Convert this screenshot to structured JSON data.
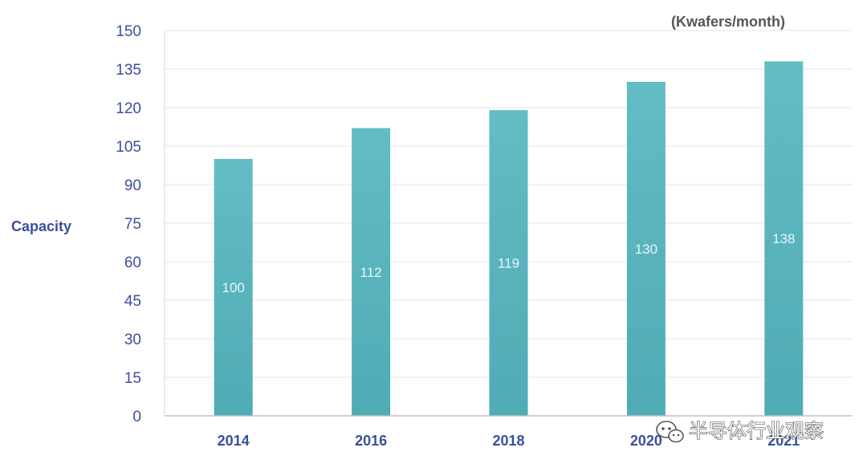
{
  "chart_data": {
    "type": "bar",
    "categories": [
      "2014",
      "2016",
      "2018",
      "2020",
      "2021"
    ],
    "values": [
      100,
      112,
      119,
      130,
      138
    ],
    "data_labels": [
      "100",
      "112",
      "119",
      "130",
      "138"
    ],
    "ylabel": "Capacity",
    "unit_label": "(Kwafers/month)",
    "ylim": [
      0,
      150
    ],
    "yticks": [
      "0",
      "15",
      "30",
      "45",
      "60",
      "75",
      "90",
      "105",
      "120",
      "135",
      "150"
    ],
    "grid": true,
    "bar_color": "#5bb6c0",
    "axis_text_color": "#3b4f9c"
  },
  "watermark": {
    "text": "半导体行业观察",
    "icon": "wechat-icon"
  }
}
